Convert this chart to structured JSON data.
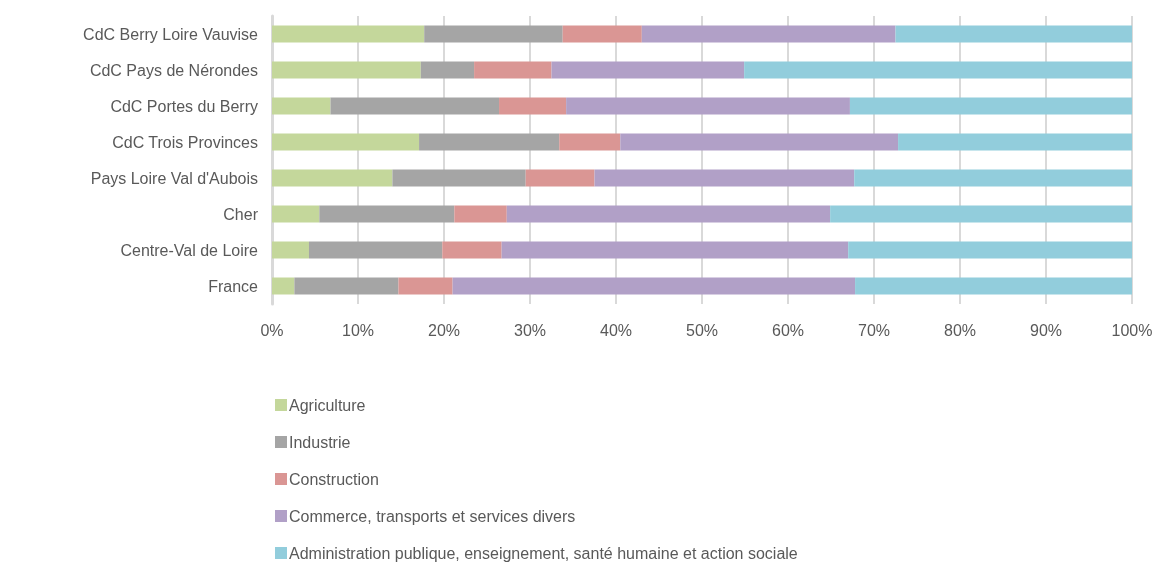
{
  "chart_data": {
    "type": "bar",
    "orientation": "horizontal",
    "stacked": true,
    "legend": "bottom",
    "grid": "x",
    "categories": [
      "CdC Berry Loire Vauvise",
      "CdC Pays de Nérondes",
      "CdC Portes du Berry",
      "CdC Trois Provinces",
      "Pays Loire Val d'Aubois",
      "Cher",
      "Centre-Val de Loire",
      "France"
    ],
    "xlim": [
      0,
      100
    ],
    "xticks": [
      {
        "value": 0,
        "label": "0%"
      },
      {
        "value": 10,
        "label": "10%"
      },
      {
        "value": 20,
        "label": "20%"
      },
      {
        "value": 30,
        "label": "30%"
      },
      {
        "value": 40,
        "label": "40%"
      },
      {
        "value": 50,
        "label": "50%"
      },
      {
        "value": 60,
        "label": "60%"
      },
      {
        "value": 70,
        "label": "70%"
      },
      {
        "value": 80,
        "label": "80%"
      },
      {
        "value": 90,
        "label": "90%"
      },
      {
        "value": 100,
        "label": "100%"
      }
    ],
    "series": [
      {
        "name": "Agriculture",
        "color": "#c4d79b",
        "values": [
          17.7,
          17.3,
          6.8,
          17.1,
          14.0,
          5.5,
          4.3,
          2.6
        ]
      },
      {
        "name": "Industrie",
        "color": "#a5a5a5",
        "values": [
          16.1,
          6.2,
          19.6,
          16.3,
          15.5,
          15.7,
          15.5,
          12.1
        ]
      },
      {
        "name": "Construction",
        "color": "#da9694",
        "values": [
          9.2,
          9.0,
          7.8,
          7.1,
          8.0,
          6.1,
          6.9,
          6.3
        ]
      },
      {
        "name": "Commerce, transports et services divers",
        "color": "#b1a0c7",
        "values": [
          29.5,
          22.4,
          33.0,
          32.3,
          30.2,
          37.6,
          40.3,
          46.8
        ]
      },
      {
        "name": "Administration publique, enseignement, santé humaine et action sociale",
        "color": "#92cddc",
        "values": [
          27.5,
          45.1,
          32.8,
          27.2,
          32.3,
          35.1,
          33.0,
          32.2
        ]
      }
    ]
  }
}
